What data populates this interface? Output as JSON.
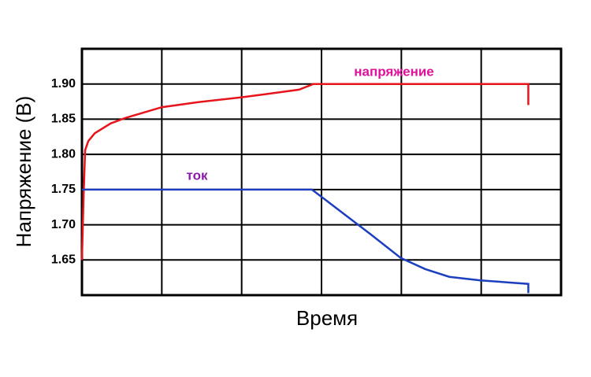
{
  "chart_data": {
    "type": "line",
    "y_label": "Напряжение (В)",
    "x_label": "Время",
    "xlim": [
      0,
      6
    ],
    "ylim": [
      1.6,
      1.95
    ],
    "yticks": [
      {
        "value": 1.9,
        "label": "1.90"
      },
      1.85,
      {
        "value": 1.8,
        "label": "1.80"
      },
      1.75,
      {
        "value": 1.7,
        "label": "1.70"
      },
      1.65
    ],
    "grid": true,
    "series": [
      {
        "name": "напряжение",
        "color": "#e8141b",
        "label_color": "#e0109a",
        "x": [
          0,
          0.02,
          0.04,
          0.08,
          0.16,
          0.36,
          0.55,
          1.0,
          1.44,
          1.99,
          2.33,
          2.72,
          2.9,
          5.59,
          5.59
        ],
        "values": [
          1.65,
          1.739,
          1.806,
          1.819,
          1.83,
          1.844,
          1.852,
          1.867,
          1.874,
          1.881,
          1.886,
          1.892,
          1.9,
          1.9,
          1.87
        ]
      },
      {
        "name": "ток",
        "color": "#1c3fbf",
        "label_color": "#8a1aa8",
        "x": [
          0,
          2.88,
          3.02,
          3.32,
          3.61,
          3.99,
          4.3,
          4.6,
          4.99,
          5.59,
          5.59
        ],
        "values": [
          1.75,
          1.75,
          1.738,
          1.712,
          1.687,
          1.653,
          1.637,
          1.626,
          1.621,
          1.616,
          1.603
        ]
      }
    ]
  }
}
